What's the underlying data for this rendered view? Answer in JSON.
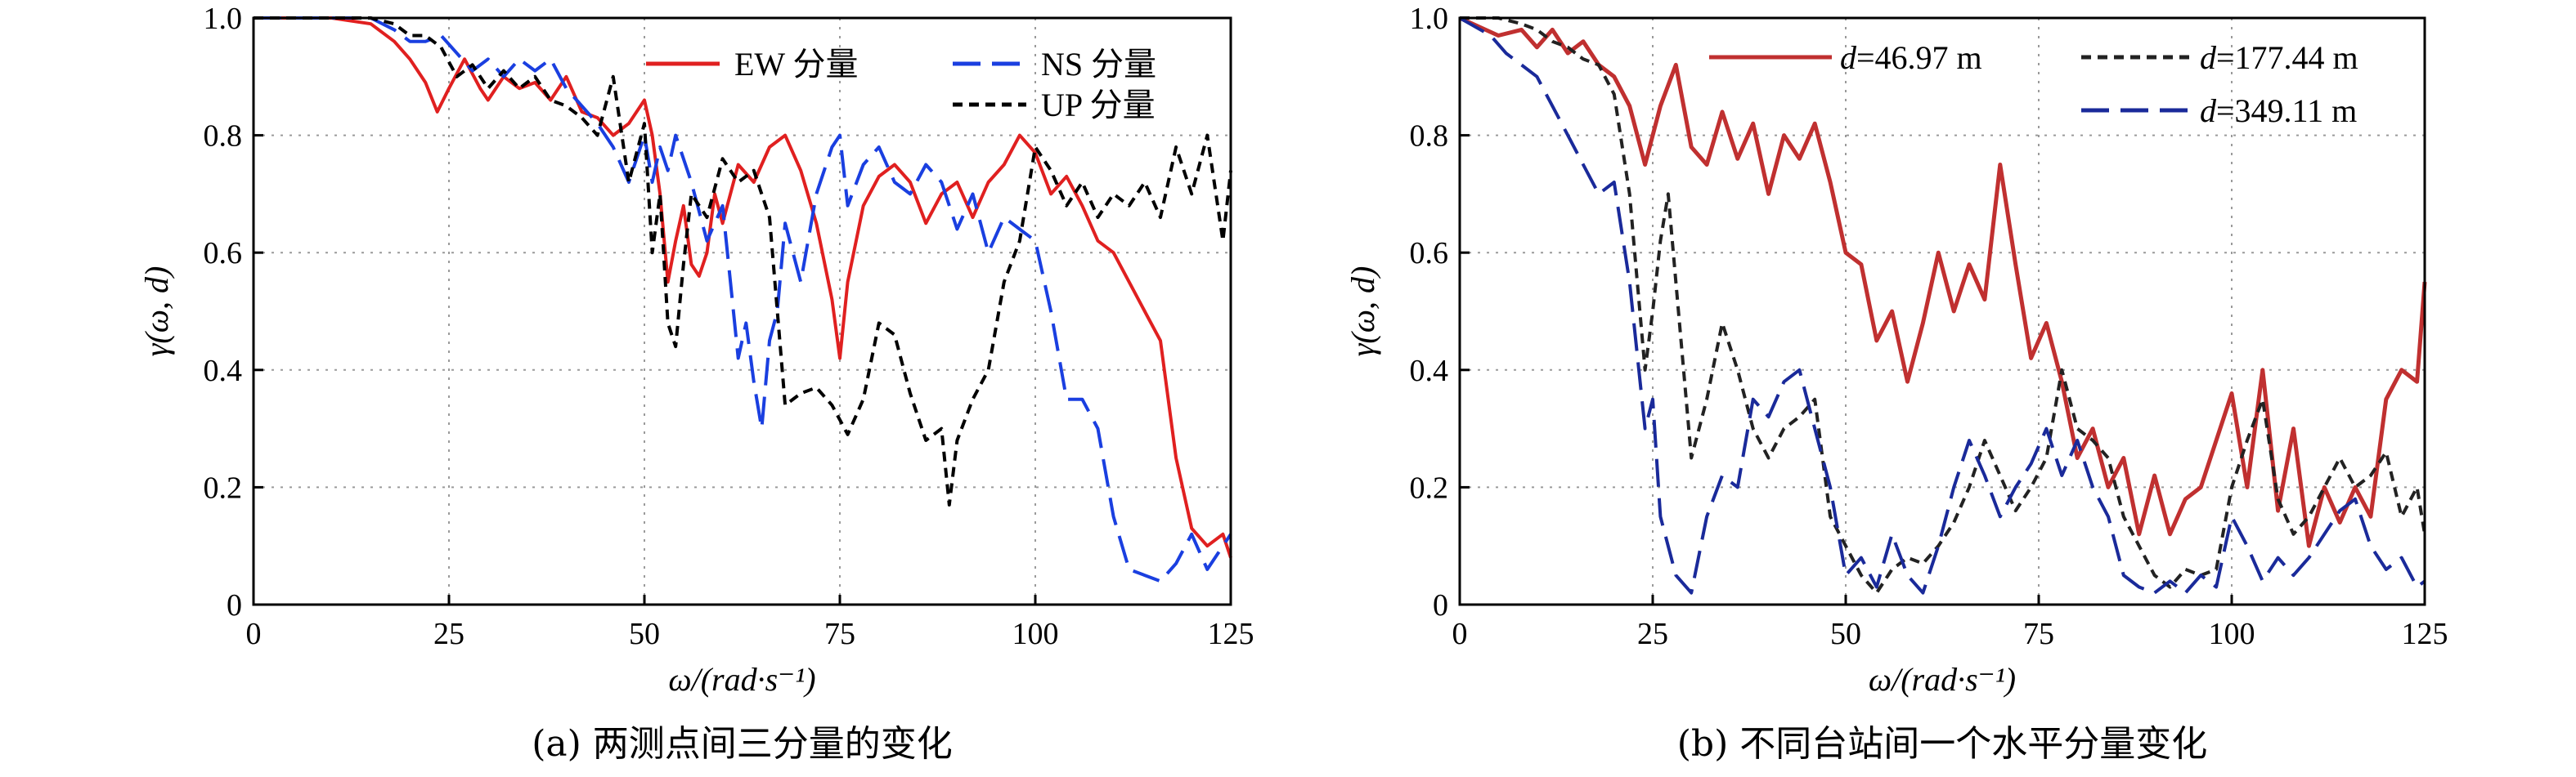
{
  "chart_data": [
    {
      "type": "line",
      "caption": "(a) 两测点间三分量的变化",
      "xlabel": "ω/(rad·s⁻¹)",
      "ylabel": "γ(ω, d)",
      "xlim": [
        0,
        125
      ],
      "ylim": [
        0,
        1.0
      ],
      "xticks": [
        "0",
        "25",
        "50",
        "75",
        "100",
        "125"
      ],
      "yticks": [
        "0",
        "0.2",
        "0.4",
        "0.6",
        "0.8",
        "1.0"
      ],
      "grid": true,
      "legend_position": "top-right",
      "series": [
        {
          "name": "EW 分量",
          "color": "#e02020",
          "dash": "solid",
          "x": [
            0,
            10,
            15,
            18,
            20,
            22,
            23.5,
            25,
            27,
            29,
            30,
            32,
            34,
            36,
            38,
            40,
            42,
            44,
            46,
            48,
            50,
            51,
            52,
            53,
            54,
            55,
            56,
            57,
            58,
            59,
            60,
            62,
            64,
            66,
            68,
            70,
            72,
            74,
            75,
            76,
            78,
            80,
            82,
            84,
            86,
            88,
            90,
            92,
            94,
            96,
            98,
            100,
            102,
            104,
            106,
            108,
            110,
            112,
            114,
            116,
            118,
            120,
            122,
            124,
            125
          ],
          "y": [
            1.0,
            1.0,
            0.99,
            0.96,
            0.93,
            0.89,
            0.84,
            0.88,
            0.93,
            0.88,
            0.86,
            0.9,
            0.88,
            0.89,
            0.86,
            0.9,
            0.84,
            0.83,
            0.8,
            0.82,
            0.86,
            0.8,
            0.7,
            0.55,
            0.62,
            0.68,
            0.58,
            0.56,
            0.6,
            0.7,
            0.65,
            0.75,
            0.72,
            0.78,
            0.8,
            0.74,
            0.65,
            0.52,
            0.42,
            0.55,
            0.68,
            0.73,
            0.75,
            0.72,
            0.65,
            0.7,
            0.72,
            0.66,
            0.72,
            0.75,
            0.8,
            0.77,
            0.7,
            0.73,
            0.68,
            0.62,
            0.6,
            0.55,
            0.5,
            0.45,
            0.25,
            0.13,
            0.1,
            0.12,
            0.08
          ]
        },
        {
          "name": "NS 分量",
          "color": "#1a3fe0",
          "dash": "long",
          "x": [
            0,
            15,
            18,
            20,
            22,
            24,
            26,
            28,
            30,
            32,
            34,
            36,
            38,
            40,
            42,
            44,
            46,
            48,
            50,
            51,
            52,
            53,
            54,
            56,
            58,
            60,
            61,
            62,
            63,
            64,
            65,
            66,
            67,
            68,
            70,
            72,
            74,
            75,
            76,
            78,
            80,
            82,
            84,
            86,
            88,
            90,
            92,
            94,
            96,
            98,
            100,
            102,
            104,
            106,
            108,
            110,
            112,
            114,
            116,
            118,
            120,
            122,
            124,
            125
          ],
          "y": [
            1.0,
            1.0,
            0.98,
            0.96,
            0.96,
            0.97,
            0.94,
            0.91,
            0.93,
            0.9,
            0.93,
            0.91,
            0.93,
            0.88,
            0.85,
            0.82,
            0.78,
            0.72,
            0.8,
            0.72,
            0.78,
            0.74,
            0.8,
            0.72,
            0.62,
            0.68,
            0.55,
            0.42,
            0.48,
            0.38,
            0.3,
            0.45,
            0.5,
            0.65,
            0.55,
            0.7,
            0.78,
            0.8,
            0.68,
            0.75,
            0.78,
            0.72,
            0.7,
            0.75,
            0.72,
            0.64,
            0.7,
            0.6,
            0.66,
            0.64,
            0.62,
            0.5,
            0.35,
            0.35,
            0.3,
            0.15,
            0.06,
            0.05,
            0.04,
            0.07,
            0.12,
            0.06,
            0.1,
            0.12
          ]
        },
        {
          "name": "UP 分量",
          "color": "#000000",
          "dash": "short",
          "x": [
            0,
            15,
            18,
            20,
            22,
            24,
            26,
            28,
            30,
            32,
            34,
            36,
            38,
            40,
            42,
            44,
            46,
            48,
            50,
            51,
            52,
            53,
            54,
            55,
            56,
            58,
            60,
            62,
            64,
            66,
            68,
            70,
            72,
            74,
            76,
            78,
            80,
            82,
            84,
            86,
            88,
            89,
            90,
            92,
            94,
            96,
            98,
            100,
            102,
            104,
            106,
            108,
            110,
            112,
            114,
            116,
            118,
            120,
            122,
            124,
            125
          ],
          "y": [
            1.0,
            1.0,
            0.99,
            0.97,
            0.97,
            0.95,
            0.9,
            0.92,
            0.88,
            0.91,
            0.88,
            0.9,
            0.86,
            0.85,
            0.83,
            0.8,
            0.9,
            0.72,
            0.82,
            0.6,
            0.7,
            0.48,
            0.44,
            0.58,
            0.7,
            0.66,
            0.76,
            0.72,
            0.74,
            0.66,
            0.34,
            0.36,
            0.37,
            0.34,
            0.29,
            0.35,
            0.48,
            0.46,
            0.36,
            0.28,
            0.3,
            0.17,
            0.28,
            0.35,
            0.4,
            0.55,
            0.62,
            0.78,
            0.74,
            0.68,
            0.72,
            0.66,
            0.7,
            0.68,
            0.72,
            0.66,
            0.78,
            0.7,
            0.8,
            0.62,
            0.74
          ]
        }
      ]
    },
    {
      "type": "line",
      "caption": "(b) 不同台站间一个水平分量变化",
      "xlabel": "ω/(rad·s⁻¹)",
      "ylabel": "γ(ω, d)",
      "xlim": [
        0,
        125
      ],
      "ylim": [
        0,
        1.0
      ],
      "xticks": [
        "0",
        "25",
        "50",
        "75",
        "100",
        "125"
      ],
      "yticks": [
        "0",
        "0.2",
        "0.4",
        "0.6",
        "0.8",
        "1.0"
      ],
      "grid": true,
      "legend_position": "top-right",
      "series": [
        {
          "name": "d=46.97 m",
          "color": "#c03030",
          "dash": "solid",
          "x": [
            0,
            5,
            8,
            10,
            12,
            14,
            16,
            18,
            20,
            22,
            24,
            26,
            28,
            30,
            32,
            34,
            36,
            38,
            40,
            42,
            44,
            46,
            48,
            50,
            52,
            54,
            56,
            58,
            60,
            62,
            64,
            66,
            68,
            70,
            72,
            74,
            76,
            78,
            80,
            82,
            84,
            86,
            88,
            90,
            92,
            94,
            96,
            98,
            100,
            102,
            104,
            106,
            108,
            110,
            112,
            114,
            116,
            118,
            120,
            122,
            124,
            125
          ],
          "y": [
            1.0,
            0.97,
            0.98,
            0.95,
            0.98,
            0.94,
            0.96,
            0.92,
            0.9,
            0.85,
            0.75,
            0.85,
            0.92,
            0.78,
            0.75,
            0.84,
            0.76,
            0.82,
            0.7,
            0.8,
            0.76,
            0.82,
            0.72,
            0.6,
            0.58,
            0.45,
            0.5,
            0.38,
            0.48,
            0.6,
            0.5,
            0.58,
            0.52,
            0.75,
            0.58,
            0.42,
            0.48,
            0.38,
            0.25,
            0.3,
            0.2,
            0.25,
            0.12,
            0.22,
            0.12,
            0.18,
            0.2,
            0.28,
            0.36,
            0.2,
            0.4,
            0.16,
            0.3,
            0.1,
            0.2,
            0.14,
            0.2,
            0.15,
            0.35,
            0.4,
            0.38,
            0.55
          ]
        },
        {
          "name": "d=177.44 m",
          "color": "#222222",
          "dash": "short",
          "x": [
            0,
            5,
            8,
            10,
            12,
            14,
            16,
            18,
            20,
            22,
            23,
            24,
            25,
            26,
            27,
            28,
            30,
            32,
            34,
            36,
            38,
            40,
            42,
            44,
            46,
            48,
            50,
            52,
            54,
            56,
            58,
            60,
            62,
            64,
            66,
            68,
            70,
            72,
            74,
            76,
            78,
            80,
            82,
            84,
            86,
            88,
            90,
            92,
            94,
            96,
            98,
            100,
            102,
            104,
            106,
            108,
            110,
            112,
            114,
            116,
            118,
            120,
            122,
            124,
            125
          ],
          "y": [
            1.0,
            1.0,
            0.99,
            0.98,
            0.96,
            0.95,
            0.93,
            0.92,
            0.87,
            0.7,
            0.55,
            0.4,
            0.5,
            0.62,
            0.7,
            0.55,
            0.25,
            0.35,
            0.48,
            0.4,
            0.3,
            0.25,
            0.3,
            0.32,
            0.35,
            0.15,
            0.1,
            0.05,
            0.02,
            0.06,
            0.08,
            0.07,
            0.1,
            0.14,
            0.2,
            0.28,
            0.22,
            0.16,
            0.2,
            0.25,
            0.4,
            0.3,
            0.28,
            0.25,
            0.15,
            0.1,
            0.05,
            0.03,
            0.06,
            0.05,
            0.06,
            0.2,
            0.28,
            0.35,
            0.18,
            0.12,
            0.15,
            0.2,
            0.25,
            0.2,
            0.22,
            0.26,
            0.15,
            0.2,
            0.12
          ]
        },
        {
          "name": "d=349.11 m",
          "color": "#1a2a9a",
          "dash": "long",
          "x": [
            0,
            4,
            6,
            8,
            10,
            12,
            14,
            16,
            18,
            20,
            22,
            24,
            25,
            26,
            28,
            30,
            32,
            34,
            36,
            38,
            40,
            42,
            44,
            46,
            48,
            50,
            52,
            54,
            56,
            58,
            60,
            62,
            64,
            66,
            68,
            70,
            72,
            74,
            76,
            78,
            80,
            82,
            84,
            86,
            88,
            90,
            92,
            94,
            96,
            98,
            100,
            102,
            104,
            106,
            108,
            110,
            112,
            114,
            116,
            118,
            120,
            122,
            124,
            125
          ],
          "y": [
            1.0,
            0.97,
            0.94,
            0.92,
            0.9,
            0.85,
            0.8,
            0.75,
            0.7,
            0.72,
            0.55,
            0.3,
            0.35,
            0.15,
            0.05,
            0.02,
            0.15,
            0.22,
            0.2,
            0.35,
            0.32,
            0.38,
            0.4,
            0.3,
            0.2,
            0.05,
            0.08,
            0.03,
            0.12,
            0.05,
            0.02,
            0.1,
            0.2,
            0.28,
            0.22,
            0.15,
            0.2,
            0.24,
            0.3,
            0.22,
            0.28,
            0.2,
            0.15,
            0.05,
            0.03,
            0.02,
            0.04,
            0.02,
            0.05,
            0.03,
            0.15,
            0.1,
            0.04,
            0.08,
            0.05,
            0.08,
            0.12,
            0.16,
            0.18,
            0.1,
            0.06,
            0.08,
            0.03,
            0.04
          ]
        }
      ]
    }
  ]
}
